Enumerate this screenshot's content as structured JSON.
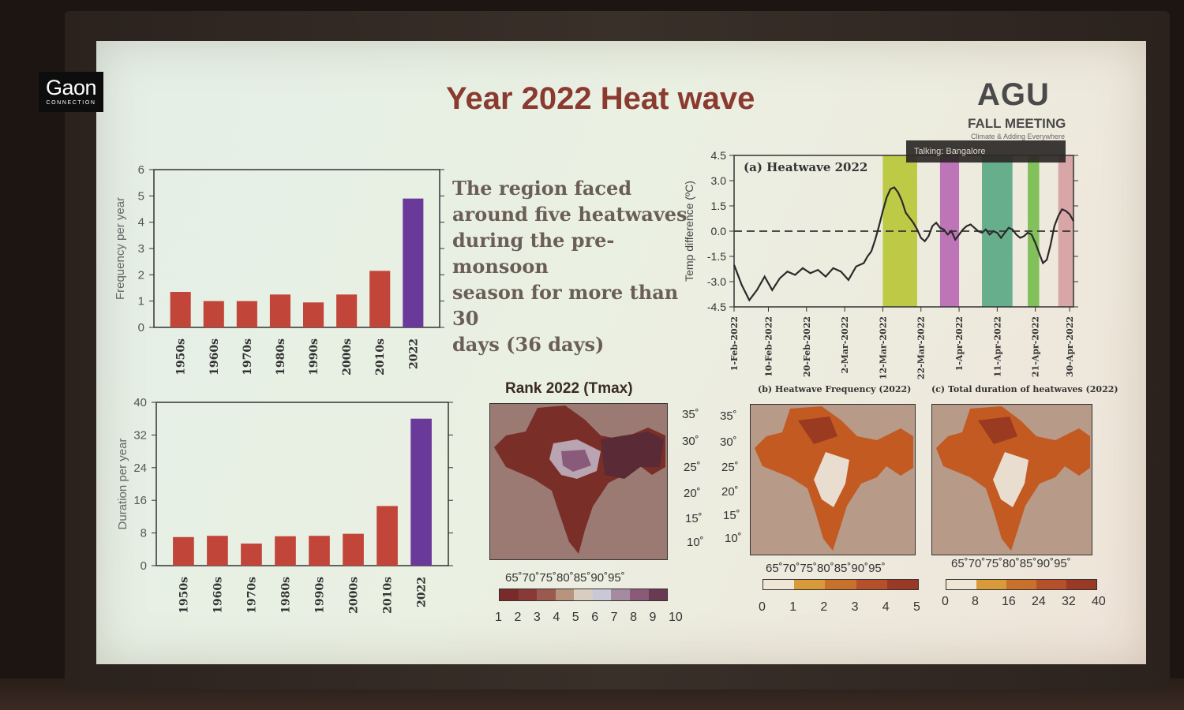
{
  "logo": {
    "main": "Gaon",
    "sub": "CONNECTION"
  },
  "slide": {
    "title": "Year 2022 Heat wave",
    "agu": "AGU",
    "agu_sub": "FALL MEETING",
    "agu_tiny": "Climate & Adding Everywhere",
    "talking_badge": "Talking: Bangalore",
    "summary_lines": [
      "The region faced",
      "around five heatwaves",
      "during the pre-monsoon",
      "season for more than 30",
      "days (36 days)"
    ]
  },
  "chart_data": [
    {
      "type": "bar",
      "ylabel": "Frequency per year",
      "categories": [
        "1950s",
        "1960s",
        "1970s",
        "1980s",
        "1990s",
        "2000s",
        "2010s",
        "2022"
      ],
      "values": [
        1.35,
        1.0,
        1.0,
        1.25,
        0.95,
        1.25,
        2.15,
        4.9
      ],
      "ylim": [
        0,
        6
      ],
      "yticks": [
        "0",
        "1",
        "2",
        "3",
        "4",
        "5",
        "6"
      ],
      "colors": {
        "decade": "#c2453a",
        "year2022": "#6a3a9a"
      }
    },
    {
      "type": "bar",
      "ylabel": "Duration per year",
      "categories": [
        "1950s",
        "1960s",
        "1970s",
        "1980s",
        "1990s",
        "2000s",
        "2010s",
        "2022"
      ],
      "values": [
        7,
        7.3,
        5.4,
        7.2,
        7.3,
        7.8,
        14.6,
        36
      ],
      "ylim": [
        0,
        40
      ],
      "yticks": [
        "0",
        "8",
        "16",
        "24",
        "32",
        "40"
      ],
      "colors": {
        "decade": "#c2453a",
        "year2022": "#6a3a9a"
      }
    },
    {
      "type": "line",
      "title": "(a) Heatwave 2022",
      "ylabel": "Temp difference (ºC)",
      "ylim": [
        -4.5,
        4.5
      ],
      "yticks": [
        "4.5",
        "3.0",
        "1.5",
        "0.0",
        "-1.5",
        "-3.0",
        "-4.5"
      ],
      "xlim_days": [
        0,
        89
      ],
      "xticks": [
        "1-Feb-2022",
        "10-Feb-2022",
        "20-Feb-2022",
        "2-Mar-2022",
        "12-Mar-2022",
        "22-Mar-2022",
        "1-Apr-2022",
        "11-Apr-2022",
        "21-Apr-2022",
        "30-Apr-2022"
      ],
      "series": [
        {
          "values_x": [
            0,
            2,
            4,
            6,
            8,
            10,
            12,
            14,
            16,
            18,
            20,
            22,
            24,
            26,
            28,
            30,
            32,
            34,
            35,
            36,
            37,
            38,
            39,
            40,
            41,
            42,
            43,
            44,
            45,
            46,
            47,
            48,
            49,
            50,
            51,
            52,
            53,
            54,
            55,
            56,
            57,
            58,
            59,
            60,
            61,
            62,
            63,
            64,
            65,
            66,
            67,
            68,
            69,
            70,
            71,
            72,
            73,
            74,
            75,
            76,
            77,
            78,
            79,
            80,
            81,
            82,
            83,
            84,
            85,
            86,
            87,
            88,
            89
          ],
          "values_y": [
            -2.0,
            -3.2,
            -4.1,
            -3.5,
            -2.7,
            -3.5,
            -2.8,
            -2.4,
            -2.6,
            -2.2,
            -2.5,
            -2.3,
            -2.7,
            -2.2,
            -2.4,
            -2.9,
            -2.1,
            -1.9,
            -1.5,
            -1.2,
            -0.5,
            0.3,
            1.2,
            2.0,
            2.5,
            2.6,
            2.3,
            1.8,
            1.1,
            0.8,
            0.5,
            0.1,
            -0.4,
            -0.6,
            -0.3,
            0.3,
            0.5,
            0.2,
            0.1,
            -0.2,
            0.0,
            -0.5,
            -0.2,
            0.1,
            0.3,
            0.4,
            0.2,
            0.0,
            -0.1,
            0.1,
            -0.2,
            0.0,
            -0.1,
            -0.4,
            -0.1,
            0.2,
            0.1,
            -0.2,
            -0.4,
            -0.3,
            -0.1,
            -0.2,
            -0.7,
            -1.3,
            -1.9,
            -1.7,
            -0.8,
            0.3,
            0.9,
            1.3,
            1.2,
            1.0,
            0.6
          ]
        }
      ],
      "heatwave_bands": [
        {
          "from": 39,
          "to": 48,
          "color": "#b5c42b"
        },
        {
          "from": 54,
          "to": 59,
          "color": "#b560b2"
        },
        {
          "from": 65,
          "to": 73,
          "color": "#4fa57e"
        },
        {
          "from": 77,
          "to": 80,
          "color": "#6fb845"
        },
        {
          "from": 85,
          "to": 89,
          "color": "#d39a9c"
        }
      ],
      "reference_line_y": 0
    }
  ],
  "maps": {
    "rank": {
      "title": "Rank 2022 (Tmax)",
      "lat_ticks": [
        "35˚",
        "30˚",
        "25˚",
        "20˚",
        "15˚",
        "10˚"
      ],
      "lon_ticks": "65˚70˚75˚80˚85˚90˚95˚",
      "colorbar_ticks": [
        "1",
        "2",
        "3",
        "4",
        "5",
        "6",
        "7",
        "8",
        "9",
        "10"
      ],
      "colorbar_colors": [
        "#7a2a2a",
        "#8a3a36",
        "#9a5a4e",
        "#b8947e",
        "#d9cdc0",
        "#c8c8d6",
        "#a58aa0",
        "#8a5a78",
        "#6a3a52"
      ]
    },
    "frequency": {
      "title": "(b) Heatwave Frequency (2022)",
      "lat_ticks": [
        "35˚",
        "30˚",
        "25˚",
        "20˚",
        "15˚",
        "10˚"
      ],
      "lon_ticks": "65˚70˚75˚80˚85˚90˚95˚",
      "colorbar_ticks": [
        "0",
        "1",
        "2",
        "3",
        "4",
        "5"
      ],
      "colorbar_colors": [
        "#efe6d6",
        "#d99a3a",
        "#c9702a",
        "#b6502a",
        "#9a3a26"
      ]
    },
    "duration": {
      "title": "(c) Total duration of heatwaves (2022)",
      "lon_ticks": "65˚70˚75˚80˚85˚90˚95˚",
      "colorbar_ticks": [
        "0",
        "8",
        "16",
        "24",
        "32",
        "40"
      ],
      "colorbar_colors": [
        "#efe6d6",
        "#d99a3a",
        "#c9702a",
        "#b6502a",
        "#9a3a26"
      ]
    }
  }
}
